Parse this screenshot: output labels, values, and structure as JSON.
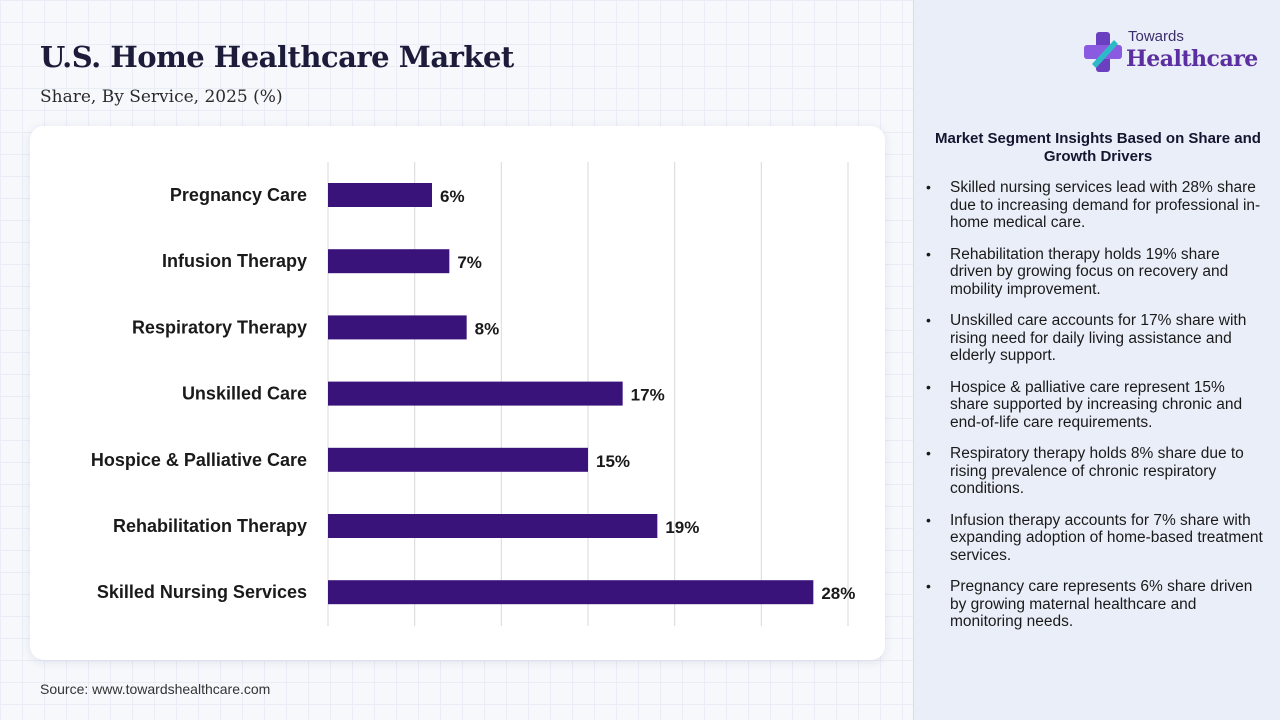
{
  "header": {
    "title": "U.S. Home Healthcare Market",
    "subtitle": "Share, By Service, 2025 (%)"
  },
  "source": "Source: www.towardshealthcare.com",
  "brand": {
    "top": "Towards",
    "bottom": "Healthcare",
    "icon": "medical-cross-logo-icon"
  },
  "insights": {
    "title": "Market Segment Insights Based on Share and Growth Drivers",
    "items": [
      "Skilled nursing services lead with 28% share due to increasing demand for professional in-home medical care.",
      "Rehabilitation therapy holds 19% share driven by growing focus on recovery and mobility improvement.",
      "Unskilled care accounts for 17% share with rising need for daily living assistance and elderly support.",
      "Hospice & palliative care represent 15% share supported by increasing chronic and end-of-life care requirements.",
      "Respiratory therapy holds 8% share due to rising prevalence of chronic respiratory conditions.",
      "Infusion therapy accounts for 7% share with expanding adoption of home-based treatment services.",
      "Pregnancy care represents 6% share driven by growing maternal healthcare and monitoring needs."
    ]
  },
  "colors": {
    "bar": "#3a137a",
    "grid": "#d9d9d9",
    "accent": "#5b2fa0"
  },
  "chart_data": {
    "type": "bar",
    "orientation": "horizontal",
    "categories": [
      "Pregnancy Care",
      "Infusion Therapy",
      "Respiratory Therapy",
      "Unskilled Care",
      "Hospice & Palliative Care",
      "Rehabilitation Therapy",
      "Skilled Nursing Services"
    ],
    "values": [
      6,
      7,
      8,
      17,
      15,
      19,
      28
    ],
    "data_labels": [
      "6%",
      "7%",
      "8%",
      "17%",
      "15%",
      "19%",
      "28%"
    ],
    "xlim": [
      0,
      30
    ],
    "grid": true,
    "legend": "none"
  }
}
